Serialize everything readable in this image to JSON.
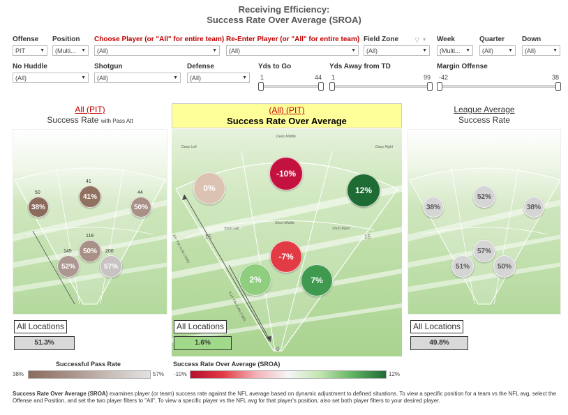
{
  "title": {
    "line1": "Receiving Efficiency:",
    "line2": "Success Rate Over Average (SROA)"
  },
  "filters_row1": [
    {
      "label": "Offense",
      "value": "PIT",
      "red": false
    },
    {
      "label": "Position",
      "value": "(Multi...",
      "red": false
    },
    {
      "label": "Choose Player (or \"All\" for entire team)",
      "value": "(All)",
      "red": true
    },
    {
      "label": "Re-Enter Player (or \"All\" for entire team)",
      "value": "(All)",
      "red": true
    },
    {
      "label": "Field Zone",
      "value": "(All)",
      "red": false
    },
    {
      "label": "Week",
      "value": "(Multi...",
      "red": false
    },
    {
      "label": "Quarter",
      "value": "(All)",
      "red": false
    },
    {
      "label": "Down",
      "value": "(All)",
      "red": false
    }
  ],
  "filters_row2": [
    {
      "label": "No Huddle",
      "value": "(All)"
    },
    {
      "label": "Shotgun",
      "value": "(All)"
    },
    {
      "label": "Defense",
      "value": "(All)"
    }
  ],
  "sliders": [
    {
      "label": "Yds to Go",
      "min": "1",
      "max": "44"
    },
    {
      "label": "Yds Away from TD",
      "min": "1",
      "max": "99"
    },
    {
      "label": "Margin Offense",
      "min": "-42",
      "max": "38"
    }
  ],
  "panels": {
    "left": {
      "link": "All (PIT)",
      "subtitle": "Success Rate",
      "subtitle_small": "with Pass Att",
      "button": "All Locations",
      "value": "51.3%",
      "bubbles": [
        {
          "label": "38%",
          "count": "50",
          "color": "#8b6b5c"
        },
        {
          "label": "41%",
          "count": "41",
          "color": "#90705f"
        },
        {
          "label": "50%",
          "count": "44",
          "color": "#a89087"
        },
        {
          "label": "50%",
          "count": "118",
          "color": "#a89087"
        },
        {
          "label": "52%",
          "count": "149",
          "color": "#ad9891"
        },
        {
          "label": "57%",
          "count": "200",
          "color": "#c8c3c2"
        }
      ]
    },
    "center": {
      "link": "(All) (PIT)",
      "subtitle": "Success Rate Over Average",
      "button": "All Locations",
      "value": "1.6%",
      "bubbles": [
        {
          "label": "0%",
          "color": "#dcc2b0"
        },
        {
          "label": "-10%",
          "color": "#c4123e"
        },
        {
          "label": "12%",
          "color": "#1e6b34"
        },
        {
          "label": "-7%",
          "color": "#e23b45"
        },
        {
          "label": "2%",
          "color": "#8fce7e"
        },
        {
          "label": "7%",
          "color": "#3f9a4f"
        }
      ],
      "zones": [
        "Deep Left",
        "Deep Middle",
        "Deep Right",
        "Short Left",
        "Short Middle",
        "Short Right"
      ],
      "yard_labels": [
        "15",
        "15",
        "0"
      ],
      "arrow_left": "22+ Yds to Air (YAR)",
      "arrow_center": "0-14 Yds to Air (YAR)"
    },
    "right": {
      "link": "League Average",
      "subtitle": "Success Rate",
      "button": "All Locations",
      "value": "49.8%",
      "bubbles": [
        {
          "label": "38%",
          "color": "#d5d5d5"
        },
        {
          "label": "52%",
          "color": "#d5d5d5"
        },
        {
          "label": "38%",
          "color": "#d5d5d5"
        },
        {
          "label": "57%",
          "color": "#d5d5d5"
        },
        {
          "label": "51%",
          "color": "#d5d5d5"
        },
        {
          "label": "50%",
          "color": "#d5d5d5"
        }
      ]
    }
  },
  "legends": {
    "success": {
      "title": "Successful Pass Rate",
      "min": "38%",
      "max": "57%"
    },
    "sroa": {
      "title": "Success Rate Over Average (SROA)",
      "min": "-10%",
      "max": "12%"
    }
  },
  "colors": {
    "accent_red": "#c00000",
    "center_header_bg": "#ffff99",
    "center_value_bg": "#a1d98b",
    "left_value_bg": "#d9d9d9",
    "right_value_bg": "#d9d9d9"
  },
  "footer": {
    "bold": "Success Rate Over Average (SROA)",
    "text": " examines player (or team) success rate against the NFL average based on dynamic adjustment to defined situations. To view a specific position for a team vs the NFL avg, select the Offense and Position, and set the two player filters to \"All\". To view a specific player vs the NFL avg for that player's position, also set both player filters to your desired player."
  }
}
